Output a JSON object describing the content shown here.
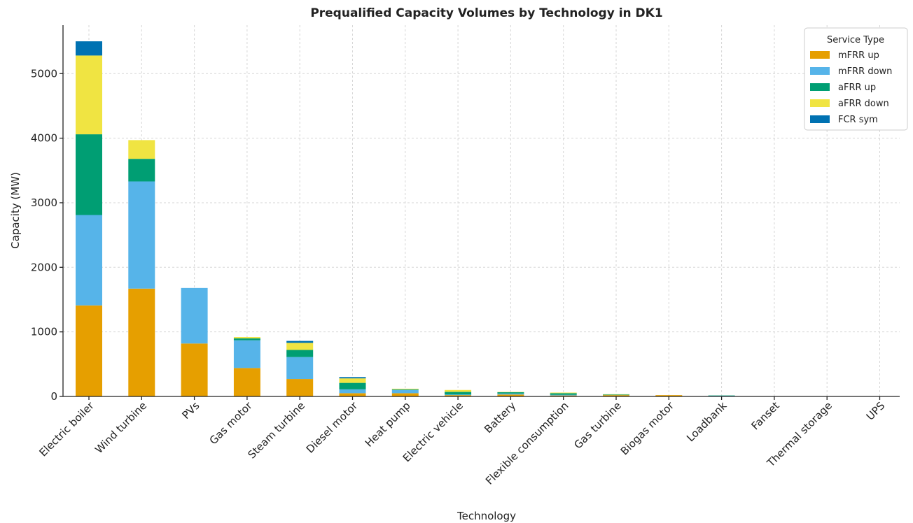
{
  "chart_data": {
    "type": "bar",
    "stacked": true,
    "title": "Prequalified Capacity Volumes by Technology in DK1",
    "xlabel": "Technology",
    "ylabel": "Capacity (MW)",
    "ylim": [
      0,
      5750
    ],
    "yticks": [
      0,
      1000,
      2000,
      3000,
      4000,
      5000
    ],
    "grid": true,
    "legend": {
      "title": "Service Type",
      "placement": "top-right"
    },
    "categories": [
      "Electric boiler",
      "Wind turbine",
      "PVs",
      "Gas motor",
      "Steam turbine",
      "Diesel motor",
      "Heat pump",
      "Electric vehicle",
      "Battery",
      "Flexible consumption",
      "Gas turbine",
      "Biogas motor",
      "Loadbank",
      "Fanset",
      "Thermal storage",
      "UPS"
    ],
    "series": [
      {
        "name": "mFRR up",
        "color": "#E69F00",
        "values": [
          1410,
          1670,
          820,
          440,
          270,
          50,
          50,
          20,
          30,
          15,
          20,
          20,
          5,
          0,
          0,
          0
        ]
      },
      {
        "name": "mFRR down",
        "color": "#56B4E9",
        "values": [
          1400,
          1660,
          860,
          430,
          340,
          60,
          50,
          10,
          15,
          10,
          0,
          0,
          5,
          0,
          0,
          0
        ]
      },
      {
        "name": "aFRR up",
        "color": "#009E73",
        "values": [
          1250,
          350,
          0,
          30,
          110,
          100,
          10,
          40,
          20,
          25,
          10,
          0,
          5,
          0,
          0,
          0
        ]
      },
      {
        "name": "aFRR down",
        "color": "#F0E442",
        "values": [
          1220,
          290,
          0,
          20,
          110,
          70,
          10,
          30,
          5,
          10,
          5,
          0,
          0,
          0,
          0,
          0
        ]
      },
      {
        "name": "FCR sym",
        "color": "#0072B2",
        "values": [
          220,
          0,
          0,
          0,
          30,
          20,
          0,
          0,
          0,
          0,
          0,
          0,
          0,
          0,
          0,
          0
        ]
      }
    ]
  }
}
